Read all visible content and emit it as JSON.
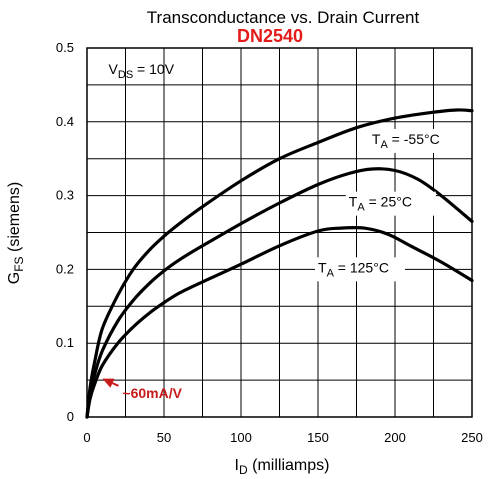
{
  "chart_data": {
    "type": "line",
    "title": "Transconductance vs. Drain Current",
    "subtitle": "DN2540",
    "xlabel": "ID (milliamps)",
    "xlabel_main": "I",
    "xlabel_sub": "D",
    "xlabel_rest": " (milliamps)",
    "ylabel": "GFS (siemens)",
    "ylabel_main": "G",
    "ylabel_sub": "FS",
    "ylabel_rest": " (siemens)",
    "xlim": [
      0,
      250
    ],
    "ylim": [
      0,
      0.5
    ],
    "x_ticks": [
      0,
      50,
      100,
      150,
      200,
      250
    ],
    "x_tick_labels": [
      "0",
      "50",
      "100",
      "150",
      "200",
      "250"
    ],
    "y_ticks": [
      0,
      0.1,
      0.2,
      0.3,
      0.4,
      0.5
    ],
    "y_tick_labels": [
      "0",
      "0.1",
      "0.2",
      "0.3",
      "0.4",
      "0.5"
    ],
    "grid": true,
    "condition": {
      "main": "V",
      "sub": "DS",
      "rest": " = 10V"
    },
    "series": [
      {
        "name": "TA = -55°C",
        "label_main": "T",
        "label_sub": "A",
        "label_rest": " = -55°C",
        "label_at": [
          185,
          0.37
        ],
        "x": [
          0,
          2,
          5,
          10,
          20,
          30,
          40,
          50,
          60,
          75,
          100,
          125,
          150,
          175,
          200,
          225,
          240,
          250
        ],
        "y": [
          0,
          0.04,
          0.075,
          0.12,
          0.165,
          0.2,
          0.225,
          0.245,
          0.262,
          0.285,
          0.32,
          0.35,
          0.372,
          0.392,
          0.405,
          0.413,
          0.416,
          0.415
        ]
      },
      {
        "name": "TA = 25°C",
        "label_main": "T",
        "label_sub": "A",
        "label_rest": " = 25°C",
        "label_at": [
          170,
          0.285
        ],
        "x": [
          0,
          2,
          5,
          10,
          20,
          30,
          40,
          50,
          60,
          75,
          100,
          125,
          150,
          170,
          185,
          200,
          215,
          230,
          250
        ],
        "y": [
          0,
          0.03,
          0.058,
          0.09,
          0.13,
          0.158,
          0.18,
          0.198,
          0.213,
          0.232,
          0.262,
          0.29,
          0.315,
          0.33,
          0.336,
          0.334,
          0.322,
          0.3,
          0.265
        ]
      },
      {
        "name": "TA = 125°C",
        "label_main": "T",
        "label_sub": "A",
        "label_rest": " = 125°C",
        "label_at": [
          150,
          0.196
        ],
        "x": [
          0,
          2,
          5,
          10,
          20,
          30,
          40,
          50,
          60,
          75,
          100,
          125,
          150,
          165,
          180,
          195,
          210,
          230,
          250
        ],
        "y": [
          0,
          0.025,
          0.045,
          0.07,
          0.1,
          0.122,
          0.14,
          0.155,
          0.168,
          0.183,
          0.207,
          0.232,
          0.252,
          0.256,
          0.256,
          0.248,
          0.232,
          0.21,
          0.185
        ]
      }
    ],
    "annotation": {
      "text": "~60mA/V",
      "color": "#c71b1b",
      "arrow_target": [
        10,
        0.052
      ],
      "text_at": [
        23,
        0.026
      ]
    },
    "colors": {
      "title_accent": "#e21b1b",
      "curves": "#000000",
      "grid": "#000000",
      "arrow": "#c71b1b"
    }
  }
}
